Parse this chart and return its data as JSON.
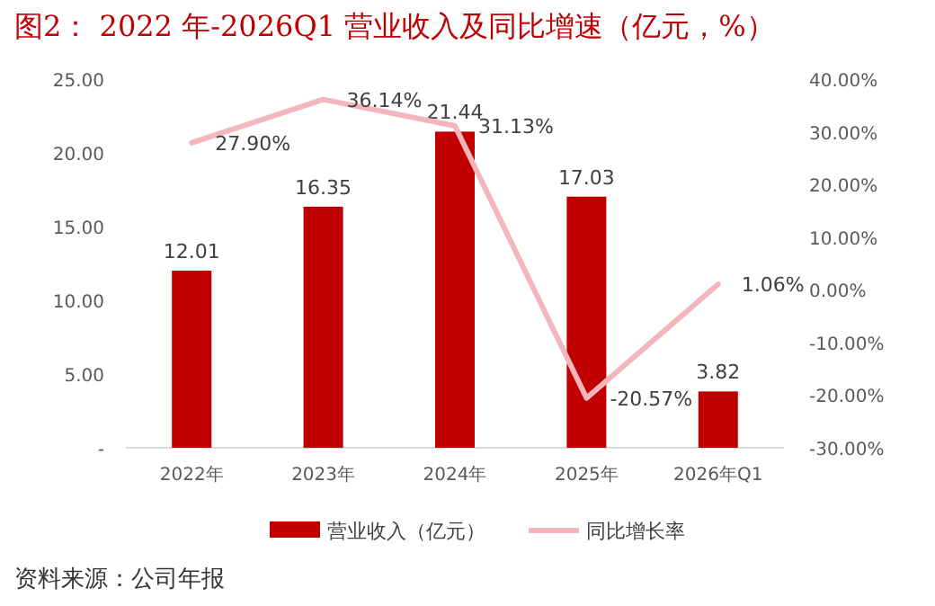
{
  "chart_data": {
    "type": "bar",
    "title": "图2：  2022 年-2026Q1 营业收入及同比增速（亿元，%）",
    "categories": [
      "2022年",
      "2023年",
      "2024年",
      "2025年",
      "2026年Q1"
    ],
    "series": [
      {
        "name": "营业收入（亿元）",
        "color": "#c00000",
        "values": [
          12.01,
          16.35,
          21.44,
          17.03,
          3.82
        ],
        "value_labels": [
          "12.01",
          "16.35",
          "21.44",
          "17.03",
          "3.82"
        ]
      },
      {
        "name": "同比增长率",
        "type": "line",
        "axis": "y2",
        "color": "#f4b6bd",
        "values": [
          27.9,
          36.14,
          31.13,
          -20.57,
          1.06
        ],
        "value_labels": [
          "27.90%",
          "36.14%",
          "31.13%",
          "-20.57%",
          "1.06%"
        ]
      }
    ],
    "ylim": [
      0,
      25
    ],
    "yticks": [
      {
        "value": 0,
        "label": "-"
      },
      {
        "value": 5,
        "label": "5.00"
      },
      {
        "value": 10,
        "label": "10.00"
      },
      {
        "value": 15,
        "label": "15.00"
      },
      {
        "value": 20,
        "label": "20.00"
      },
      {
        "value": 25,
        "label": "25.00"
      }
    ],
    "y2lim": [
      -30,
      40
    ],
    "y2ticks": [
      {
        "value": -30,
        "label": "-30.00%"
      },
      {
        "value": -20,
        "label": "-20.00%"
      },
      {
        "value": -10,
        "label": "-10.00%"
      },
      {
        "value": 0,
        "label": "0.00%"
      },
      {
        "value": 10,
        "label": "10.00%"
      },
      {
        "value": 20,
        "label": "20.00%"
      },
      {
        "value": 30,
        "label": "30.00%"
      },
      {
        "value": 40,
        "label": "40.00%"
      }
    ],
    "legend": "bottom",
    "annotations": [
      "资料来源：公司年报"
    ]
  }
}
